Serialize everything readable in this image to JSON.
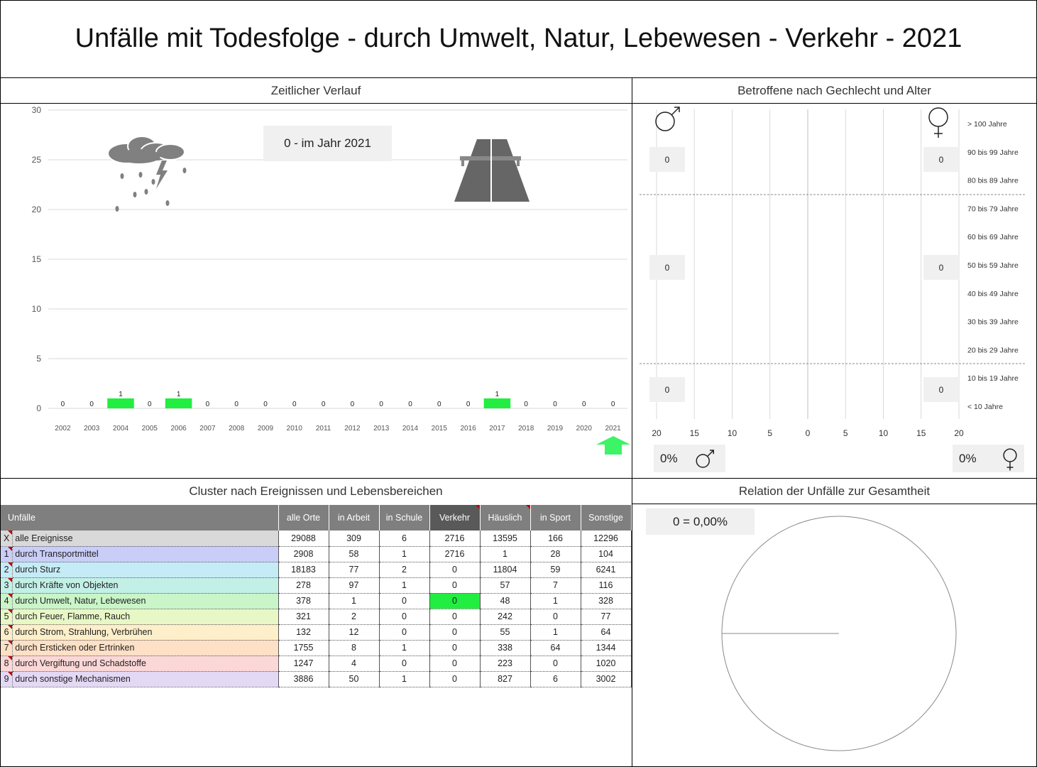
{
  "title": "Unfälle mit Todesfolge - durch Umwelt, Natur, Lebewesen - Verkehr - 2021",
  "panels": {
    "timeline": "Zeitlicher Verlauf",
    "pyramid": "Betroffene nach Gechlecht und Alter",
    "cluster": "Cluster nach Ereignissen und Lebensbereichen",
    "relation": "Relation der Unfälle zur Gesamtheit"
  },
  "timeline_callout": "0 - im Jahr 2021",
  "icons": [
    "storm-cloud-icon",
    "highway-road-icon",
    "green-arrow-up-icon",
    "male-symbol-icon",
    "female-symbol-icon"
  ],
  "colors": {
    "bar": "#21ee40",
    "highlight": "#21ee40",
    "arrow": "#3cf466",
    "header_grey": "#7f7f7f",
    "header_dark": "#595959"
  },
  "chart_data": [
    {
      "type": "bar",
      "categories": [
        "2002",
        "2003",
        "2004",
        "2005",
        "2006",
        "2007",
        "2008",
        "2009",
        "2010",
        "2011",
        "2012",
        "2013",
        "2014",
        "2015",
        "2016",
        "2017",
        "2018",
        "2019",
        "2020",
        "2021"
      ],
      "values": [
        0,
        0,
        1,
        0,
        1,
        0,
        0,
        0,
        0,
        0,
        0,
        0,
        0,
        0,
        0,
        1,
        0,
        0,
        0,
        0
      ],
      "ylim": [
        0,
        30
      ],
      "yticks": [
        "0",
        "5",
        "10",
        "15",
        "20",
        "25",
        "30"
      ],
      "grid": true,
      "data_labels": true
    },
    {
      "type": "bar",
      "orientation": "horizontal",
      "age_groups": [
        "> 100 Jahre",
        "90 bis 99 Jahre",
        "80 bis 89 Jahre",
        "70 bis 79 Jahre",
        "60 bis 69 Jahre",
        "50 bis 59 Jahre",
        "40 bis 49 Jahre",
        "30 bis 39 Jahre",
        "20 bis 29 Jahre",
        "10 bis 19 Jahre",
        "< 10 Jahre"
      ],
      "xticks": [
        "20",
        "15",
        "10",
        "5",
        "0",
        "5",
        "10",
        "15",
        "20"
      ],
      "male_values": [
        0,
        0,
        0,
        0,
        0,
        0,
        0,
        0,
        0,
        0,
        0
      ],
      "female_values": [
        0,
        0,
        0,
        0,
        0,
        0,
        0,
        0,
        0,
        0,
        0
      ],
      "group_labels": {
        "male": [
          "0",
          "0",
          "0"
        ],
        "female": [
          "0",
          "0",
          "0"
        ]
      },
      "male_percent": "0%",
      "female_percent": "0%"
    },
    {
      "type": "pie",
      "values": [
        0
      ],
      "label": "0 =  0,00%"
    }
  ],
  "table": {
    "headers": [
      "Unfälle",
      "alle Orte",
      "in Arbeit",
      "in Schule",
      "Verkehr",
      "Häuslich",
      "in Sport",
      "Sonstige"
    ],
    "rows": [
      {
        "id": "X",
        "label": "alle Ereignisse",
        "values": [
          "29088",
          "309",
          "6",
          "2716",
          "13595",
          "166",
          "12296"
        ],
        "color": "#d9d9d9"
      },
      {
        "id": "1",
        "label": "durch Transportmittel",
        "values": [
          "2908",
          "58",
          "1",
          "2716",
          "1",
          "28",
          "104"
        ],
        "color": "#c9cdf7"
      },
      {
        "id": "2",
        "label": "durch Sturz",
        "values": [
          "18183",
          "77",
          "2",
          "0",
          "11804",
          "59",
          "6241"
        ],
        "color": "#c5ebf7"
      },
      {
        "id": "3",
        "label": "durch Kräfte von Objekten",
        "values": [
          "278",
          "97",
          "1",
          "0",
          "57",
          "7",
          "116"
        ],
        "color": "#c2f0e6"
      },
      {
        "id": "4",
        "label": "durch Umwelt, Natur, Lebewesen",
        "values": [
          "378",
          "1",
          "0",
          "0",
          "48",
          "1",
          "328"
        ],
        "color": "#c9f5c9"
      },
      {
        "id": "5",
        "label": "durch Feuer, Flamme, Rauch",
        "values": [
          "321",
          "2",
          "0",
          "0",
          "242",
          "0",
          "77"
        ],
        "color": "#e8f7c6"
      },
      {
        "id": "6",
        "label": "durch Strom, Strahlung, Verbrühen",
        "values": [
          "132",
          "12",
          "0",
          "0",
          "55",
          "1",
          "64"
        ],
        "color": "#fcefc9"
      },
      {
        "id": "7",
        "label": "durch Ersticken oder Ertrinken",
        "values": [
          "1755",
          "8",
          "1",
          "0",
          "338",
          "64",
          "1344"
        ],
        "color": "#fde0c6"
      },
      {
        "id": "8",
        "label": "durch Vergiftung und Schadstoffe",
        "values": [
          "1247",
          "4",
          "0",
          "0",
          "223",
          "0",
          "1020"
        ],
        "color": "#fcd7d7"
      },
      {
        "id": "9",
        "label": "durch sonstige Mechanismen",
        "values": [
          "3886",
          "50",
          "1",
          "0",
          "827",
          "6",
          "3002"
        ],
        "color": "#e3d9f5"
      }
    ],
    "highlight": {
      "row": 4,
      "col": 3
    }
  }
}
